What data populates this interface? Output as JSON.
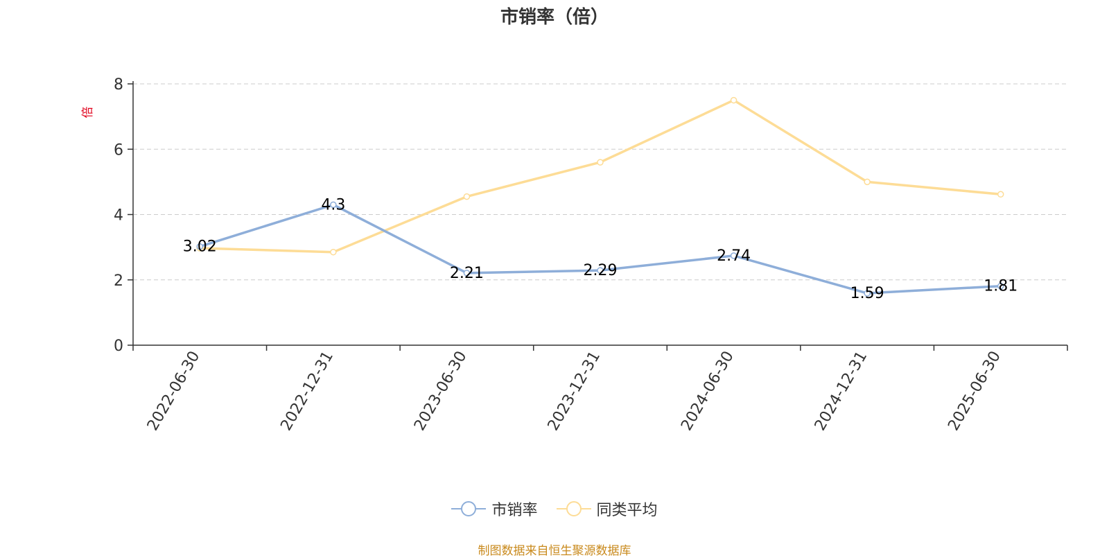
{
  "title": "市销率（倍）",
  "source_note": "制图数据来自恒生聚源数据库",
  "colors": {
    "series1": "#8eaed9",
    "series2": "#fddc96",
    "ylabel": "#e0001b",
    "source": "#c98a1d"
  },
  "chart_data": {
    "type": "line",
    "title": "市销率（倍）",
    "ylabel": "倍",
    "xlabel": "",
    "ylim": [
      0,
      8
    ],
    "yticks": [
      0,
      2,
      4,
      6,
      8
    ],
    "grid": true,
    "legend_position": "bottom",
    "categories": [
      "2022-06-30",
      "2022-12-31",
      "2023-06-30",
      "2023-12-31",
      "2024-06-30",
      "2024-12-31",
      "2025-06-30"
    ],
    "series": [
      {
        "name": "市销率",
        "values": [
          3.02,
          4.3,
          2.21,
          2.29,
          2.74,
          1.59,
          1.81
        ],
        "labels": [
          "3.02",
          "4.3",
          "2.21",
          "2.29",
          "2.74",
          "1.59",
          "1.81"
        ]
      },
      {
        "name": "同类平均",
        "values": [
          2.97,
          2.85,
          4.55,
          5.6,
          7.5,
          5.0,
          4.62
        ]
      }
    ]
  }
}
